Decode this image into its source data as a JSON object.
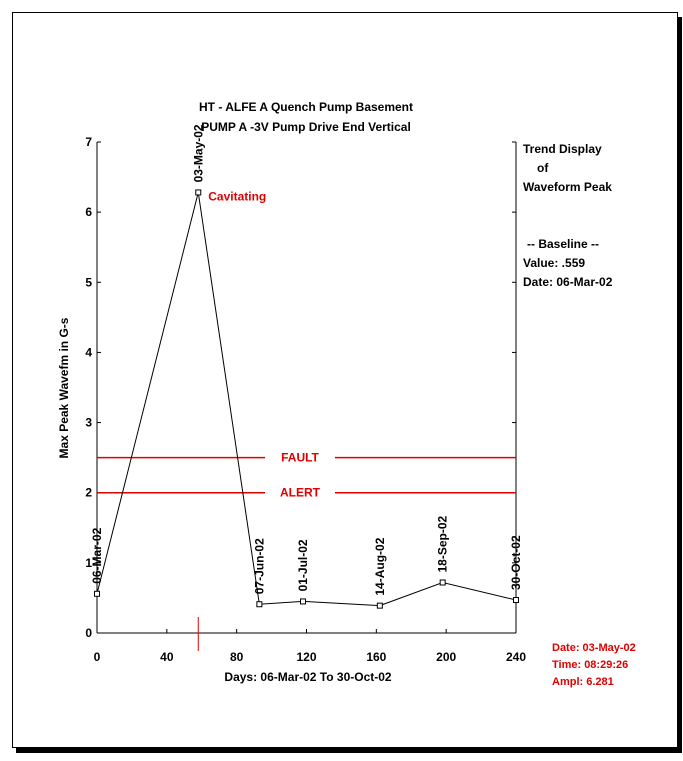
{
  "chart_data": {
    "type": "line",
    "title_line1": "HT   - ALFE A Quench Pump Basement",
    "title_line2": "PUMP A   -3V    Pump Drive End Vertical",
    "ylabel": "Max Peak Wavefm in G-s",
    "xlabel": "Days:  06-Mar-02  To  30-Oct-02",
    "xlim": [
      0,
      240
    ],
    "ylim": [
      0,
      7
    ],
    "x_ticks": [
      0,
      40,
      80,
      120,
      160,
      200,
      240
    ],
    "y_ticks": [
      0,
      1,
      2,
      3,
      4,
      5,
      6,
      7
    ],
    "series": [
      {
        "x": [
          0,
          58,
          93,
          118,
          162,
          198,
          240
        ],
        "y": [
          0.559,
          6.281,
          0.41,
          0.45,
          0.39,
          0.72,
          0.47
        ],
        "labels": [
          "06-Mar-02",
          "03-May-02",
          "07-Jun-02",
          "01-Jul-02",
          "14-Aug-02",
          "18-Sep-02",
          "30-Oct-02"
        ]
      }
    ],
    "thresholds": [
      {
        "label": "FAULT",
        "value": 2.5,
        "color": "#e00000"
      },
      {
        "label": "ALERT",
        "value": 2.0,
        "color": "#e00000"
      }
    ],
    "annotation": {
      "text": "Cavitating",
      "x": 58,
      "y": 6.281,
      "color": "#e00000"
    },
    "cursor_x": 58,
    "side_panel": {
      "line1": "Trend Display",
      "line2": "of",
      "line3": "Waveform Peak",
      "baseline_header": "-- Baseline --",
      "baseline_value": "Value:    .559",
      "baseline_date": "Date:  06-Mar-02"
    },
    "readout": {
      "date": "Date:   03-May-02",
      "time": "Time:  08:29:26",
      "ampl": "Ampl:     6.281"
    }
  }
}
